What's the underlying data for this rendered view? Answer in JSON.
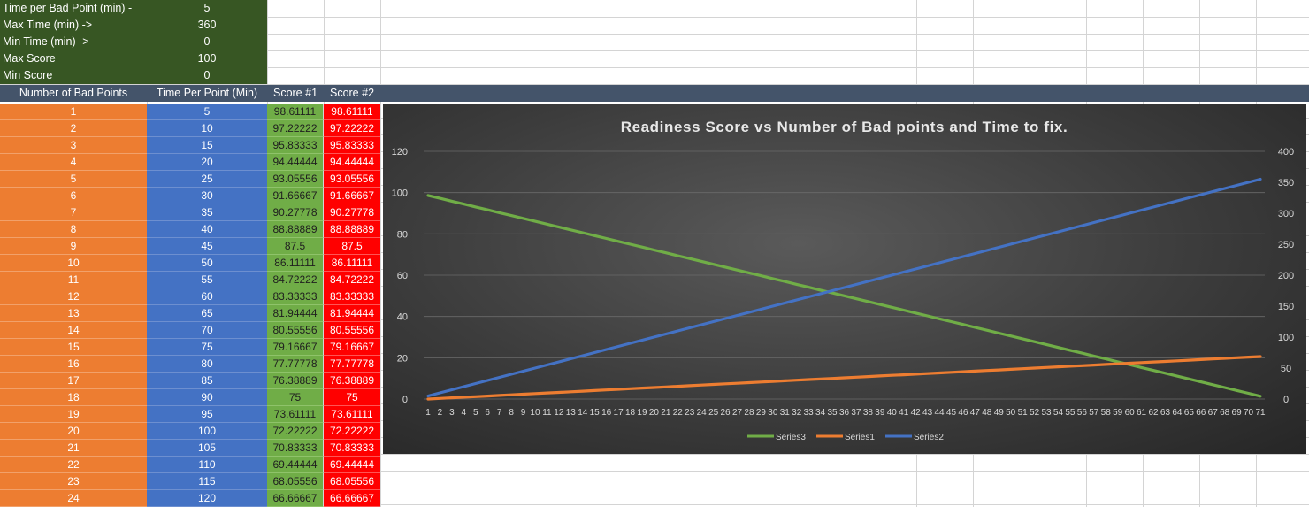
{
  "parameters": [
    {
      "label": "Time per Bad Point (min) -",
      "value": "5"
    },
    {
      "label": "Max Time (min) ->",
      "value": "360"
    },
    {
      "label": "Min Time (min) ->",
      "value": "0"
    },
    {
      "label": "Max Score",
      "value": "100"
    },
    {
      "label": "Min Score",
      "value": "0"
    }
  ],
  "headers": [
    "Number of Bad Points",
    "Time Per Point (Min)",
    "Score #1",
    "Score #2"
  ],
  "rows": [
    [
      "1",
      "5",
      "98.61111",
      "98.61111"
    ],
    [
      "2",
      "10",
      "97.22222",
      "97.22222"
    ],
    [
      "3",
      "15",
      "95.83333",
      "95.83333"
    ],
    [
      "4",
      "20",
      "94.44444",
      "94.44444"
    ],
    [
      "5",
      "25",
      "93.05556",
      "93.05556"
    ],
    [
      "6",
      "30",
      "91.66667",
      "91.66667"
    ],
    [
      "7",
      "35",
      "90.27778",
      "90.27778"
    ],
    [
      "8",
      "40",
      "88.88889",
      "88.88889"
    ],
    [
      "9",
      "45",
      "87.5",
      "87.5"
    ],
    [
      "10",
      "50",
      "86.11111",
      "86.11111"
    ],
    [
      "11",
      "55",
      "84.72222",
      "84.72222"
    ],
    [
      "12",
      "60",
      "83.33333",
      "83.33333"
    ],
    [
      "13",
      "65",
      "81.94444",
      "81.94444"
    ],
    [
      "14",
      "70",
      "80.55556",
      "80.55556"
    ],
    [
      "15",
      "75",
      "79.16667",
      "79.16667"
    ],
    [
      "16",
      "80",
      "77.77778",
      "77.77778"
    ],
    [
      "17",
      "85",
      "76.38889",
      "76.38889"
    ],
    [
      "18",
      "90",
      "75",
      "75"
    ],
    [
      "19",
      "95",
      "73.61111",
      "73.61111"
    ],
    [
      "20",
      "100",
      "72.22222",
      "72.22222"
    ],
    [
      "21",
      "105",
      "70.83333",
      "70.83333"
    ],
    [
      "22",
      "110",
      "69.44444",
      "69.44444"
    ],
    [
      "23",
      "115",
      "68.05556",
      "68.05556"
    ],
    [
      "24",
      "120",
      "66.66667",
      "66.66667"
    ]
  ],
  "colors": {
    "params_bg": "#375623",
    "header_bg": "#44546a",
    "col_a": "#ed7d31",
    "col_b": "#4472c4",
    "col_c": "#70ad47",
    "col_d": "#ff0000",
    "series3": "#70ad47",
    "series1": "#ed7d31",
    "series2": "#4472c4"
  },
  "chart_data": {
    "type": "line",
    "title": "Readiness Score vs Number of Bad points and Time to fix.",
    "x": [
      1,
      2,
      3,
      4,
      5,
      6,
      7,
      8,
      9,
      10,
      11,
      12,
      13,
      14,
      15,
      16,
      17,
      18,
      19,
      20,
      21,
      22,
      23,
      24,
      25,
      26,
      27,
      28,
      29,
      30,
      31,
      32,
      33,
      34,
      35,
      36,
      37,
      38,
      39,
      40,
      41,
      42,
      43,
      44,
      45,
      46,
      47,
      48,
      49,
      50,
      51,
      52,
      53,
      54,
      55,
      56,
      57,
      58,
      59,
      60,
      61,
      62,
      63,
      64,
      65,
      66,
      67,
      68,
      69,
      70,
      71
    ],
    "y_left": {
      "min": 0,
      "max": 120,
      "ticks": [
        0,
        20,
        40,
        60,
        80,
        100,
        120
      ]
    },
    "y_right": {
      "min": 0,
      "max": 400,
      "ticks": [
        0,
        50,
        100,
        150,
        200,
        250,
        300,
        350,
        400
      ]
    },
    "legend_position": "bottom",
    "series": [
      {
        "name": "Series3",
        "axis": "left",
        "color": "#70ad47",
        "start": 98.61111,
        "step": -1.388889
      },
      {
        "name": "Series1",
        "axis": "left",
        "color": "#ed7d31",
        "start": 0,
        "step": 0.2941
      },
      {
        "name": "Series2",
        "axis": "right",
        "color": "#4472c4",
        "start": 5,
        "step": 5
      }
    ]
  }
}
